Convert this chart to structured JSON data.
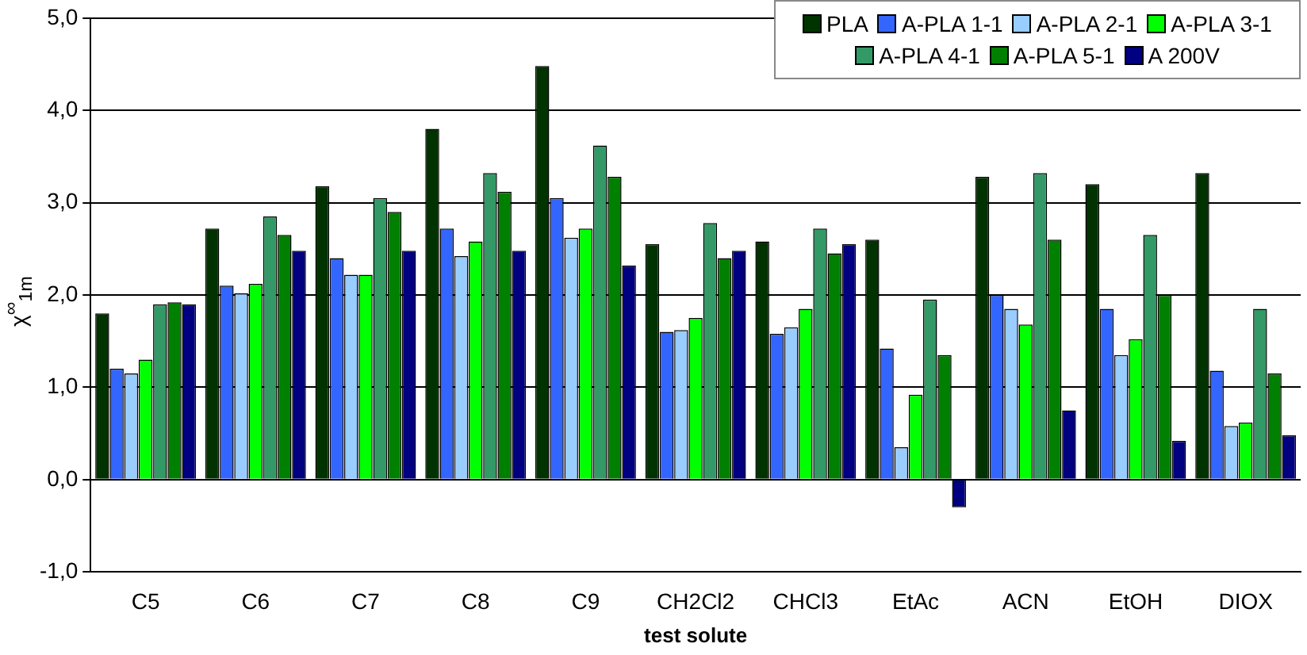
{
  "chart_data": {
    "type": "bar",
    "xlabel": "test solute",
    "ylabel": "χ$^{∞}$$_{1m}$",
    "categories": [
      "C5",
      "C6",
      "C7",
      "C8",
      "C9",
      "CH2Cl2",
      "CHCl3",
      "EtAc",
      "ACN",
      "EtOH",
      "DIOX"
    ],
    "series": [
      {
        "name": "PLA",
        "color": "#003300",
        "values": [
          1.8,
          2.72,
          3.18,
          3.8,
          4.48,
          2.55,
          2.58,
          2.6,
          3.28,
          3.2,
          3.32
        ]
      },
      {
        "name": "A-PLA 1-1",
        "color": "#3366ff",
        "values": [
          1.2,
          2.1,
          2.4,
          2.72,
          3.05,
          1.6,
          1.58,
          1.42,
          2.0,
          1.85,
          1.18
        ]
      },
      {
        "name": "A-PLA 2-1",
        "color": "#99ccff",
        "values": [
          1.15,
          2.02,
          2.22,
          2.42,
          2.62,
          1.62,
          1.65,
          0.35,
          1.85,
          1.35,
          0.58
        ]
      },
      {
        "name": "A-PLA 3-1",
        "color": "#00ff00",
        "values": [
          1.3,
          2.12,
          2.22,
          2.58,
          2.72,
          1.75,
          1.85,
          0.92,
          1.68,
          1.52,
          0.62
        ]
      },
      {
        "name": "A-PLA 4-1",
        "color": "#339966",
        "values": [
          1.9,
          2.85,
          3.05,
          3.32,
          3.62,
          2.78,
          2.72,
          1.95,
          3.32,
          2.65,
          1.85
        ]
      },
      {
        "name": "A-PLA 5-1",
        "color": "#008000",
        "values": [
          1.92,
          2.65,
          2.9,
          3.12,
          3.28,
          2.4,
          2.45,
          1.35,
          2.6,
          2.0,
          1.15
        ]
      },
      {
        "name": "A 200V",
        "color": "#000080",
        "values": [
          1.9,
          2.48,
          2.48,
          2.48,
          2.32,
          2.48,
          2.55,
          -0.3,
          0.75,
          0.42,
          0.48
        ]
      }
    ],
    "ylim": [
      -1,
      5
    ],
    "yticks": [
      {
        "value": -1,
        "label": "-1,0"
      },
      {
        "value": 0,
        "label": "0,0"
      },
      {
        "value": 1,
        "label": "1,0"
      },
      {
        "value": 2,
        "label": "2,0"
      },
      {
        "value": 3,
        "label": "3,0"
      },
      {
        "value": 4,
        "label": "4,0"
      },
      {
        "value": 5,
        "label": "5,0"
      }
    ],
    "grid": "y",
    "legend": "top right"
  }
}
